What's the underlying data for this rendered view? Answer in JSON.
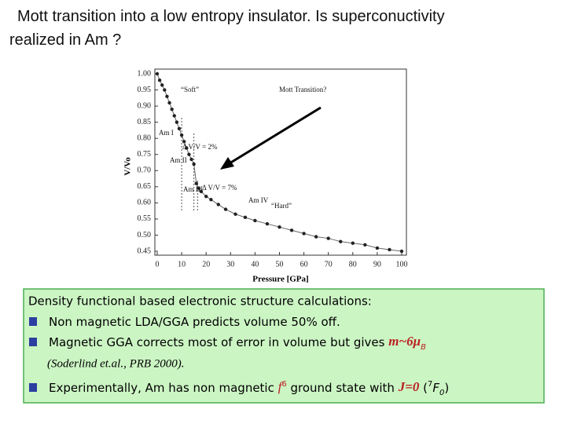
{
  "title": "Mott transition into a low entropy insulator.  Is superconuctivity realized in Am ?",
  "chart_data": {
    "type": "scatter",
    "xlabel": "Pressure [GPa]",
    "ylabel": "V/Vo",
    "x": [
      0,
      1,
      2,
      3,
      4,
      5,
      6,
      7,
      8,
      9,
      10,
      11,
      12,
      13,
      14,
      15,
      16,
      17,
      18,
      20,
      22,
      25,
      28,
      32,
      36,
      40,
      45,
      50,
      55,
      60,
      65,
      70,
      75,
      80,
      85,
      90,
      95,
      100
    ],
    "values": [
      1.0,
      0.98,
      0.965,
      0.95,
      0.93,
      0.91,
      0.89,
      0.87,
      0.85,
      0.83,
      0.81,
      0.79,
      0.77,
      0.75,
      0.735,
      0.72,
      0.66,
      0.645,
      0.635,
      0.62,
      0.61,
      0.595,
      0.58,
      0.565,
      0.555,
      0.545,
      0.535,
      0.525,
      0.515,
      0.505,
      0.495,
      0.49,
      0.48,
      0.475,
      0.47,
      0.46,
      0.455,
      0.45
    ],
    "color": "#222222",
    "xlim": [
      0,
      100
    ],
    "ylim": [
      0.45,
      1.0
    ],
    "xticks": [
      0,
      10,
      20,
      30,
      40,
      50,
      60,
      70,
      80,
      90,
      100
    ],
    "yticks": [
      {
        "value": 1.0,
        "label": "1.00"
      },
      0.95,
      {
        "value": 0.9,
        "label": "0.90"
      },
      0.85,
      {
        "value": 0.8,
        "label": "0.80"
      },
      0.75,
      {
        "value": 0.7,
        "label": "0.70"
      },
      0.65,
      {
        "value": 0.6,
        "label": "0.60"
      },
      0.55,
      {
        "value": 0.5,
        "label": "0.50"
      },
      0.45
    ],
    "annotations": [
      "“Soft”",
      "Mott Transition?",
      "“Hard”",
      "Am I",
      "Am II",
      "Am III",
      "Am IV",
      "Δ V/V = 2%",
      "Δ V/V = 7%"
    ]
  },
  "box": {
    "heading": "Density functional based electronic structure calculations:",
    "items": [
      {
        "parts": [
          "Non magnetic LDA/GGA predicts volume 50% off."
        ]
      },
      {
        "parts": [
          "Magnetic GGA corrects most of error in volume but gives ",
          "m~6μ",
          "B"
        ],
        "citation": "(Soderlind et.al., PRB 2000)."
      },
      {
        "parts": [
          "Experimentally, Am has non magnetic ",
          "f",
          "6",
          " ground state with ",
          "J=0",
          " (",
          "7",
          "F",
          "0",
          ")"
        ]
      }
    ]
  }
}
